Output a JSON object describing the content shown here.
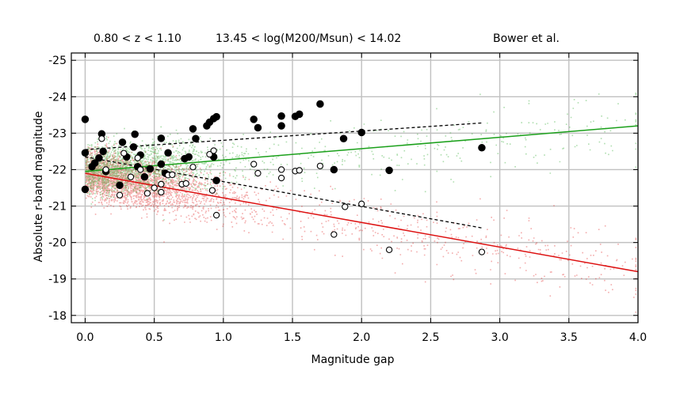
{
  "header": {
    "left": "0.80 < z < 1.10",
    "center": "13.45 < log(M200/Msun) < 14.02",
    "right": "Bower et al."
  },
  "chart_data": {
    "type": "scatter",
    "xlabel": "Magnitude gap",
    "ylabel": "Absolute r-band magnitude",
    "xlim": [
      -0.1,
      4.0
    ],
    "ylim": [
      -17.8,
      -25.2
    ],
    "y_inverted": true,
    "grid": true,
    "x_ticks": [
      "0.0",
      "0.5",
      "1.0",
      "1.5",
      "2.0",
      "2.5",
      "3.0",
      "3.5",
      "4.0"
    ],
    "y_ticks": [
      "-25",
      "-24",
      "-23",
      "-22",
      "-21",
      "-20",
      "-19",
      "-18"
    ],
    "x_tick_values": [
      0.0,
      0.5,
      1.0,
      1.5,
      2.0,
      2.5,
      3.0,
      3.5,
      4.0
    ],
    "y_tick_values": [
      -25,
      -24,
      -23,
      -22,
      -21,
      -20,
      -19,
      -18
    ],
    "colors": {
      "green": "#1aa01a",
      "red": "#dd1111",
      "black": "#000000",
      "grid": "#c0c0c0"
    },
    "series": [
      {
        "marker": "filled-circle",
        "points": [
          [
            0.0,
            -23.38
          ],
          [
            0.0,
            -22.46
          ],
          [
            0.0,
            -21.46
          ],
          [
            0.05,
            -22.08
          ],
          [
            0.07,
            -22.18
          ],
          [
            0.1,
            -22.32
          ],
          [
            0.12,
            -22.98
          ],
          [
            0.13,
            -22.5
          ],
          [
            0.15,
            -21.95
          ],
          [
            0.25,
            -21.57
          ],
          [
            0.27,
            -22.75
          ],
          [
            0.3,
            -22.35
          ],
          [
            0.35,
            -22.62
          ],
          [
            0.36,
            -22.97
          ],
          [
            0.38,
            -22.08
          ],
          [
            0.4,
            -22.4
          ],
          [
            0.43,
            -21.8
          ],
          [
            0.47,
            -22.02
          ],
          [
            0.55,
            -22.86
          ],
          [
            0.55,
            -22.15
          ],
          [
            0.58,
            -21.9
          ],
          [
            0.6,
            -22.46
          ],
          [
            0.72,
            -22.3
          ],
          [
            0.75,
            -22.35
          ],
          [
            0.78,
            -23.12
          ],
          [
            0.8,
            -22.85
          ],
          [
            0.88,
            -23.2
          ],
          [
            0.9,
            -23.3
          ],
          [
            0.93,
            -23.4
          ],
          [
            0.95,
            -23.45
          ],
          [
            0.93,
            -22.35
          ],
          [
            0.95,
            -21.7
          ],
          [
            1.22,
            -23.38
          ],
          [
            1.25,
            -23.15
          ],
          [
            1.42,
            -23.47
          ],
          [
            1.42,
            -23.2
          ],
          [
            1.52,
            -23.46
          ],
          [
            1.55,
            -23.52
          ],
          [
            1.7,
            -23.8
          ],
          [
            1.8,
            -22.0
          ],
          [
            1.87,
            -22.85
          ],
          [
            2.0,
            -23.02
          ],
          [
            2.2,
            -21.98
          ],
          [
            2.87,
            -22.6
          ]
        ]
      },
      {
        "marker": "open-circle",
        "points": [
          [
            0.12,
            -22.85
          ],
          [
            0.15,
            -22.0
          ],
          [
            0.25,
            -21.3
          ],
          [
            0.28,
            -22.45
          ],
          [
            0.33,
            -21.8
          ],
          [
            0.38,
            -22.32
          ],
          [
            0.4,
            -22.0
          ],
          [
            0.45,
            -21.35
          ],
          [
            0.5,
            -21.5
          ],
          [
            0.55,
            -21.38
          ],
          [
            0.55,
            -21.6
          ],
          [
            0.6,
            -21.85
          ],
          [
            0.63,
            -21.86
          ],
          [
            0.7,
            -21.6
          ],
          [
            0.73,
            -21.62
          ],
          [
            0.78,
            -22.07
          ],
          [
            0.9,
            -22.42
          ],
          [
            0.92,
            -21.43
          ],
          [
            0.93,
            -22.52
          ],
          [
            0.95,
            -20.75
          ],
          [
            1.22,
            -22.15
          ],
          [
            1.25,
            -21.9
          ],
          [
            1.42,
            -22.0
          ],
          [
            1.42,
            -21.77
          ],
          [
            1.52,
            -21.96
          ],
          [
            1.55,
            -21.98
          ],
          [
            1.7,
            -22.1
          ],
          [
            1.8,
            -20.22
          ],
          [
            1.88,
            -20.98
          ],
          [
            2.0,
            -21.06
          ],
          [
            2.2,
            -19.8
          ],
          [
            2.87,
            -19.74
          ]
        ]
      }
    ],
    "fit_lines": [
      {
        "color": "green",
        "style": "solid",
        "x": [
          0.0,
          4.0
        ],
        "y": [
          -21.95,
          -23.2
        ]
      },
      {
        "color": "red",
        "style": "solid",
        "x": [
          0.0,
          4.0
        ],
        "y": [
          -21.9,
          -19.2
        ]
      },
      {
        "color": "black",
        "style": "dashed",
        "x": [
          0.0,
          2.87
        ],
        "y": [
          -22.55,
          -23.28
        ]
      },
      {
        "color": "black",
        "style": "dashed",
        "x": [
          0.0,
          2.87
        ],
        "y": [
          -22.35,
          -20.4
        ]
      }
    ]
  }
}
